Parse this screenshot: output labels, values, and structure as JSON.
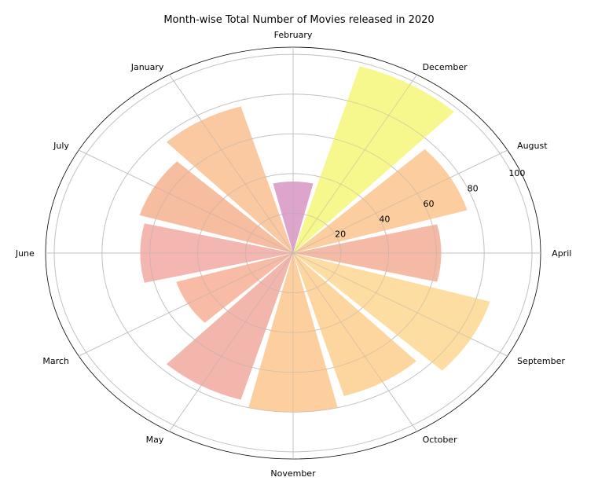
{
  "chart_data": {
    "type": "polar-bar",
    "title": "Month-wise Total Number of Movies released in 2020",
    "categories": [
      "April",
      "August",
      "December",
      "February",
      "January",
      "July",
      "June",
      "March",
      "May",
      "November",
      "October",
      "September"
    ],
    "values": [
      62,
      76,
      98,
      36,
      77,
      67,
      64,
      51,
      77,
      80,
      75,
      86
    ],
    "colors": [
      "#f2a68d",
      "#fbbf83",
      "#f3f56b",
      "#d48bbe",
      "#f8b886",
      "#f3ab87",
      "#efa29a",
      "#f6a88d",
      "#eea296",
      "#fcc283",
      "#fcca84",
      "#fdd487"
    ],
    "accent_colors": [
      "#f7a77c",
      "#f6d850",
      "#f6d850",
      "#d48bbe",
      "#f2a27c",
      "#f2a27c",
      "#efa29a",
      "#f6a88d",
      "#f7a77c",
      "#fbbf83",
      "#fcca84",
      "#fdd487"
    ],
    "radial_ticks": [
      20,
      40,
      60,
      80,
      100
    ],
    "rlim": [
      0,
      100
    ],
    "grid": true
  }
}
